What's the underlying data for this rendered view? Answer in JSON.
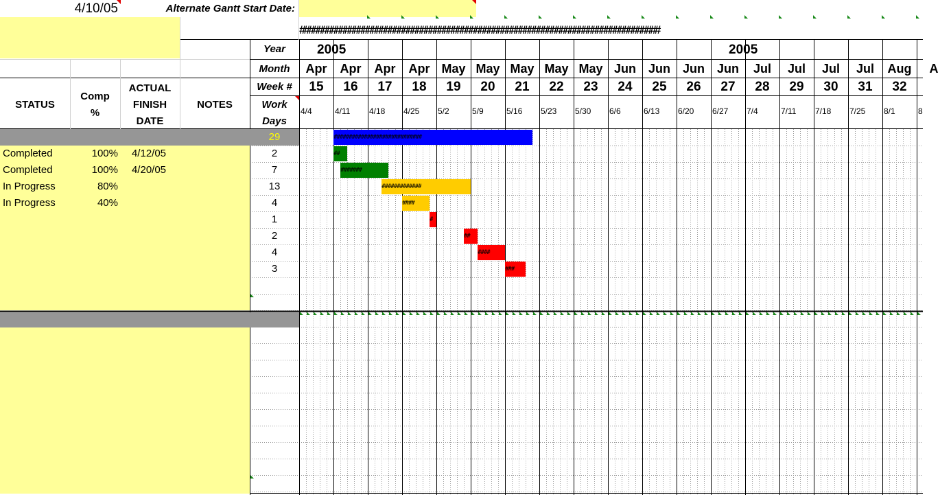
{
  "top": {
    "start_date": "4/10/05",
    "alt_label": "Alternate Gantt Start Date:",
    "hash_text": "################################################################################"
  },
  "labels": {
    "year": "Year",
    "month": "Month",
    "week": "Week #",
    "work": "Work",
    "days": "Days",
    "status": "STATUS",
    "comp1": "Comp",
    "comp2": "%",
    "actual1": "ACTUAL",
    "actual2": "FINISH",
    "actual3": "DATE",
    "notes": "NOTES"
  },
  "years": [
    "2005",
    "2005"
  ],
  "weeks": [
    {
      "month": "Apr",
      "num": "15",
      "date": "4/4"
    },
    {
      "month": "Apr",
      "num": "16",
      "date": "4/11"
    },
    {
      "month": "Apr",
      "num": "17",
      "date": "4/18"
    },
    {
      "month": "Apr",
      "num": "18",
      "date": "4/25"
    },
    {
      "month": "May",
      "num": "19",
      "date": "5/2"
    },
    {
      "month": "May",
      "num": "20",
      "date": "5/9"
    },
    {
      "month": "May",
      "num": "21",
      "date": "5/16"
    },
    {
      "month": "May",
      "num": "22",
      "date": "5/23"
    },
    {
      "month": "May",
      "num": "23",
      "date": "5/30"
    },
    {
      "month": "Jun",
      "num": "24",
      "date": "6/6"
    },
    {
      "month": "Jun",
      "num": "25",
      "date": "6/13"
    },
    {
      "month": "Jun",
      "num": "26",
      "date": "6/20"
    },
    {
      "month": "Jun",
      "num": "27",
      "date": "6/27"
    },
    {
      "month": "Jul",
      "num": "28",
      "date": "7/4"
    },
    {
      "month": "Jul",
      "num": "29",
      "date": "7/11"
    },
    {
      "month": "Jul",
      "num": "30",
      "date": "7/18"
    },
    {
      "month": "Jul",
      "num": "31",
      "date": "7/25"
    },
    {
      "month": "Aug",
      "num": "32",
      "date": "8/1"
    },
    {
      "month": "A",
      "num": "",
      "date": "8"
    }
  ],
  "summary_days": "29",
  "tasks": [
    {
      "status": "Completed",
      "comp": "100%",
      "finish": "4/12/05",
      "days": "2",
      "bar": {
        "start": 1,
        "len": 2,
        "color": "#008000",
        "text": "##"
      }
    },
    {
      "status": "Completed",
      "comp": "100%",
      "finish": "4/20/05",
      "days": "7",
      "bar": {
        "start": 2,
        "len": 7,
        "color": "#008000",
        "text": "#######"
      }
    },
    {
      "status": "In Progress",
      "comp": "80%",
      "finish": "",
      "days": "13",
      "bar": {
        "start": 8,
        "len": 13,
        "color": "#ffcc00",
        "text": "#############"
      }
    },
    {
      "status": "In Progress",
      "comp": "40%",
      "finish": "",
      "days": "4",
      "bar": {
        "start": 11,
        "len": 4,
        "color": "#ffcc00",
        "text": "####"
      }
    },
    {
      "status": "",
      "comp": "",
      "finish": "",
      "days": "1",
      "bar": {
        "start": 15,
        "len": 1,
        "color": "#ff0000",
        "text": "#"
      }
    },
    {
      "status": "",
      "comp": "",
      "finish": "",
      "days": "2",
      "bar": {
        "start": 20,
        "len": 2,
        "color": "#ff0000",
        "text": "##"
      }
    },
    {
      "status": "",
      "comp": "",
      "finish": "",
      "days": "4",
      "bar": {
        "start": 22,
        "len": 4,
        "color": "#ff0000",
        "text": "####"
      }
    },
    {
      "status": "",
      "comp": "",
      "finish": "",
      "days": "3",
      "bar": {
        "start": 26,
        "len": 3,
        "color": "#ff0000",
        "text": "###"
      }
    }
  ],
  "summary_bar": {
    "start": 1,
    "len": 29,
    "color": "#0000ff",
    "text": "#############################"
  }
}
